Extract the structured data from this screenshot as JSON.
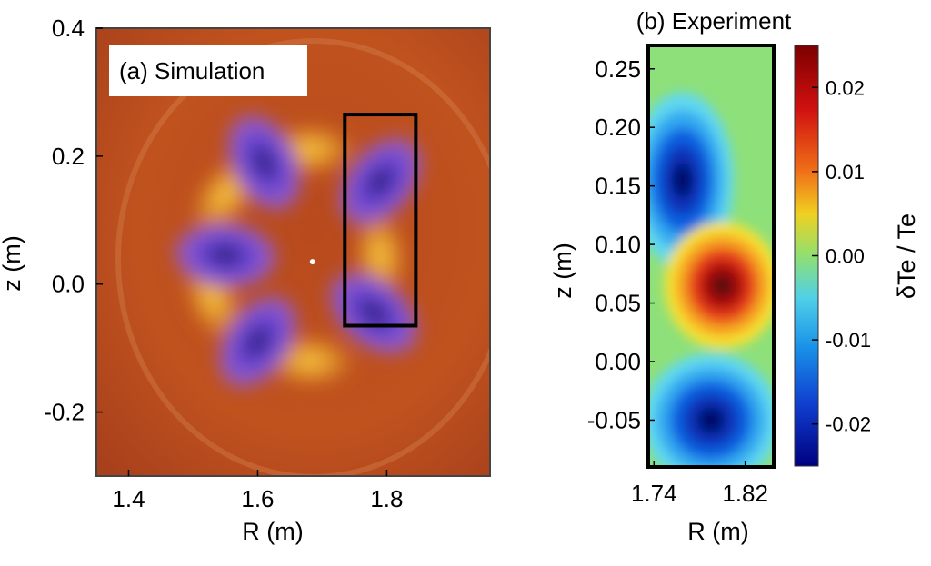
{
  "chart_data": [
    {
      "type": "heatmap",
      "panel_label": "(a) Simulation",
      "xlabel": "R (m)",
      "ylabel": "z (m)",
      "x_ticks": [
        "1.4",
        "1.6",
        "1.8"
      ],
      "y_ticks": [
        "0.4",
        "0.2",
        "0.0",
        "-0.2"
      ],
      "xlim": [
        1.35,
        1.96
      ],
      "ylim": [
        -0.3,
        0.4
      ],
      "colors": {
        "background": "#b5461d",
        "cool": "#7a4cf0",
        "cool_core": "#2a1a70",
        "warm": "#f0b030"
      },
      "magnetic_axis": {
        "R": 1.685,
        "z": 0.035
      },
      "cool_lobes": [
        {
          "R": 1.61,
          "z": 0.19
        },
        {
          "R": 1.55,
          "z": 0.045
        },
        {
          "R": 1.6,
          "z": -0.09
        },
        {
          "R": 1.79,
          "z": 0.16
        },
        {
          "R": 1.78,
          "z": -0.045
        }
      ],
      "warm_lobes": [
        {
          "R": 1.68,
          "z": 0.21
        },
        {
          "R": 1.55,
          "z": 0.14
        },
        {
          "R": 1.79,
          "z": 0.045
        },
        {
          "R": 1.68,
          "z": -0.12
        },
        {
          "R": 1.53,
          "z": -0.02
        }
      ],
      "experiment_window": {
        "R_min": 1.735,
        "R_max": 1.845,
        "z_min": -0.065,
        "z_max": 0.265
      }
    },
    {
      "type": "heatmap",
      "title": "(b) Experiment",
      "xlabel": "R (m)",
      "ylabel": "z (m)",
      "x_ticks": [
        "1.74",
        "1.82"
      ],
      "y_ticks": [
        "0.25",
        "0.20",
        "0.15",
        "0.10",
        "0.05",
        "0.00",
        "-0.05"
      ],
      "xlim": [
        1.735,
        1.845
      ],
      "ylim": [
        -0.09,
        0.27
      ],
      "field": [
        {
          "R": 1.765,
          "z": 0.155,
          "value": -0.022,
          "spread": [
            0.03,
            0.05
          ]
        },
        {
          "R": 1.8,
          "z": 0.065,
          "value": 0.024,
          "spread": [
            0.034,
            0.036
          ]
        },
        {
          "R": 1.79,
          "z": -0.05,
          "value": -0.023,
          "spread": [
            0.04,
            0.038
          ]
        }
      ],
      "colorbar": {
        "label": "δTe / Te",
        "ticks": [
          "0.02",
          "0.01",
          "0.00",
          "-0.01",
          "-0.02"
        ],
        "range": [
          -0.025,
          0.025
        ]
      }
    }
  ]
}
